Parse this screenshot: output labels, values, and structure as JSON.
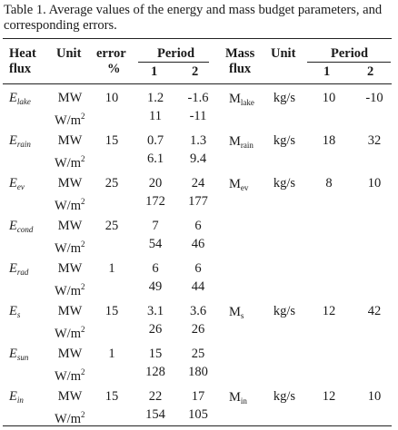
{
  "caption": "Table 1. Average values of the energy and mass budget parameters, and corresponding errors.",
  "header": {
    "heat_flux_1": "Heat",
    "heat_flux_2": "flux",
    "unit": "Unit",
    "error_1": "error",
    "error_2": "%",
    "period": "Period",
    "period_1": "1",
    "period_2": "2",
    "mass_flux_1": "Mass",
    "mass_flux_2": "flux",
    "unit2": "Unit",
    "period2": "Period",
    "period2_1": "1",
    "period2_2": "2"
  },
  "rows": [
    {
      "heat_main": "E",
      "heat_sub": "lake",
      "unit_mw": "MW",
      "unit_wm": "W/m",
      "unit_sup": "2",
      "error": "10",
      "mw1": "1.2",
      "mw2": "-1.6",
      "wm1": "11",
      "wm2": "-11",
      "mass_main": "M",
      "mass_sub": "lake",
      "mass_unit": "kg/s",
      "m1": "10",
      "m2": "-10"
    },
    {
      "heat_main": "E",
      "heat_sub": "rain",
      "unit_mw": "MW",
      "unit_wm": "W/m",
      "unit_sup": "2",
      "error": "15",
      "mw1": "0.7",
      "mw2": "1.3",
      "wm1": "6.1",
      "wm2": "9.4",
      "mass_main": "M",
      "mass_sub": "rain",
      "mass_unit": "kg/s",
      "m1": "18",
      "m2": "32"
    },
    {
      "heat_main": "E",
      "heat_sub": "ev",
      "unit_mw": "MW",
      "unit_wm": "W/m",
      "unit_sup": "2",
      "error": "25",
      "mw1": "20",
      "mw2": "24",
      "wm1": "172",
      "wm2": "177",
      "mass_main": "M",
      "mass_sub": "ev",
      "mass_unit": "kg/s",
      "m1": "8",
      "m2": "10"
    },
    {
      "heat_main": "E",
      "heat_sub": "cond",
      "unit_mw": "MW",
      "unit_wm": "W/m",
      "unit_sup": "2",
      "error": "25",
      "mw1": "7",
      "mw2": "6",
      "wm1": "54",
      "wm2": "46",
      "mass_main": "",
      "mass_sub": "",
      "mass_unit": "",
      "m1": "",
      "m2": ""
    },
    {
      "heat_main": "E",
      "heat_sub": "rad",
      "unit_mw": "MW",
      "unit_wm": "W/m",
      "unit_sup": "2",
      "error": "1",
      "mw1": "6",
      "mw2": "6",
      "wm1": "49",
      "wm2": "44",
      "mass_main": "",
      "mass_sub": "",
      "mass_unit": "",
      "m1": "",
      "m2": ""
    },
    {
      "heat_main": "E",
      "heat_sub": "s",
      "unit_mw": "MW",
      "unit_wm": "W/m",
      "unit_sup": "2",
      "error": "15",
      "mw1": "3.1",
      "mw2": "3.6",
      "wm1": "26",
      "wm2": "26",
      "mass_main": "M",
      "mass_sub": "s",
      "mass_unit": "kg/s",
      "m1": "12",
      "m2": "42"
    },
    {
      "heat_main": "E",
      "heat_sub": "sun",
      "unit_mw": "MW",
      "unit_wm": "W/m",
      "unit_sup": "2",
      "error": "1",
      "mw1": "15",
      "mw2": "25",
      "wm1": "128",
      "wm2": "180",
      "mass_main": "",
      "mass_sub": "",
      "mass_unit": "",
      "m1": "",
      "m2": ""
    },
    {
      "heat_main": "E",
      "heat_sub": "in",
      "unit_mw": "MW",
      "unit_wm": "W/m",
      "unit_sup": "2",
      "error": "15",
      "mw1": "22",
      "mw2": "17",
      "wm1": "154",
      "wm2": "105",
      "mass_main": "M",
      "mass_sub": "in",
      "mass_unit": "kg/s",
      "m1": "12",
      "m2": "10"
    }
  ]
}
